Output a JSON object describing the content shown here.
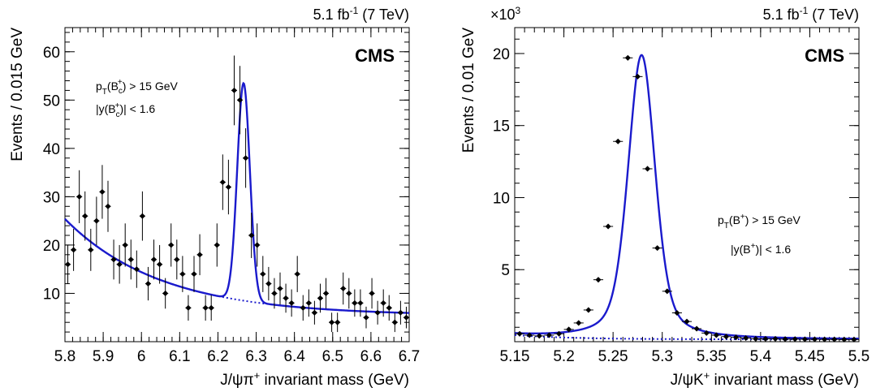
{
  "panels": [
    {
      "id": "left",
      "lumi_main": "5.1 fb",
      "lumi_sup": "-1",
      "lumi_tail": " (7 TeV)",
      "experiment": "CMS",
      "cut1": {
        "a": "p",
        "b": "T",
        "c": "(B",
        "d": "c",
        "e": "+",
        "f": ") > 15 GeV"
      },
      "cut2": {
        "a": "|y(B",
        "b": "c",
        "c": "+",
        "d": ")| < 1.6"
      },
      "xlabel": {
        "a": "J/ψπ",
        "b": "+",
        "c": " invariant mass (GeV)"
      },
      "ylabel": "Events / 0.015 GeV"
    },
    {
      "id": "right",
      "lumi_main": "5.1 fb",
      "lumi_sup": "-1",
      "lumi_tail": " (7 TeV)",
      "experiment": "CMS",
      "multiplier": {
        "a": "×10",
        "b": "3"
      },
      "cut1": {
        "a": "p",
        "b": "T",
        "c": "(B",
        "d": "+",
        "e": ") > 15 GeV"
      },
      "cut2": {
        "a": "|y(B",
        "b": "+",
        "c": ")| < 1.6"
      },
      "xlabel": {
        "a": "J/ψK",
        "b": "+",
        "c": " invariant mass (GeV)"
      },
      "ylabel": "Events / 0.01 GeV"
    }
  ],
  "colors": {
    "fit": "#1a1acc",
    "points": "#000000"
  },
  "chart_data": [
    {
      "type": "scatter",
      "xlim": [
        5.8,
        6.7
      ],
      "ylim": [
        0,
        65
      ],
      "xticks": [
        5.8,
        5.9,
        6.0,
        6.1,
        6.2,
        6.3,
        6.4,
        6.5,
        6.6,
        6.7
      ],
      "xtick_labels": [
        "5.8",
        "5.9",
        "6",
        "6.1",
        "6.2",
        "6.3",
        "6.4",
        "6.5",
        "6.6",
        "6.7"
      ],
      "yticks": [
        10,
        20,
        30,
        40,
        50,
        60
      ],
      "ytick_labels": [
        "10",
        "20",
        "30",
        "40",
        "50",
        "60"
      ],
      "bin_width": 0.015,
      "data": {
        "x": [
          5.8075,
          5.8225,
          5.8375,
          5.8525,
          5.8675,
          5.8825,
          5.8975,
          5.9125,
          5.9275,
          5.9425,
          5.9575,
          5.9725,
          5.9875,
          6.0025,
          6.0175,
          6.0325,
          6.0475,
          6.0625,
          6.0775,
          6.0925,
          6.1075,
          6.1225,
          6.1375,
          6.1525,
          6.1675,
          6.1825,
          6.1975,
          6.2125,
          6.2275,
          6.2425,
          6.2575,
          6.2725,
          6.2875,
          6.3025,
          6.3175,
          6.3325,
          6.3475,
          6.3625,
          6.3775,
          6.3925,
          6.4075,
          6.4225,
          6.4375,
          6.4525,
          6.4675,
          6.4825,
          6.4975,
          6.5125,
          6.5275,
          6.5425,
          6.5575,
          6.5725,
          6.5875,
          6.6025,
          6.6175,
          6.6325,
          6.6475,
          6.6625,
          6.6775,
          6.6925
        ],
        "y": [
          16,
          19,
          30,
          26,
          19,
          25,
          31,
          28,
          17,
          16,
          20,
          17,
          15,
          26,
          12,
          17,
          16,
          10,
          20,
          17,
          14,
          7,
          14,
          18,
          7,
          7,
          20,
          33,
          32,
          52,
          50,
          38,
          22,
          20,
          14,
          12,
          10,
          11,
          9,
          8,
          14,
          7,
          8,
          6,
          9,
          10,
          4,
          4,
          11,
          10,
          8,
          8,
          5,
          10,
          6,
          8,
          7,
          4,
          6,
          5
        ]
      },
      "series": [
        {
          "kind": "fit-total",
          "style": "solid"
        },
        {
          "kind": "fit-background",
          "style": "dotted"
        }
      ]
    },
    {
      "type": "scatter",
      "xlim": [
        5.15,
        5.5
      ],
      "ylim": [
        0,
        21800
      ],
      "xticks": [
        5.15,
        5.2,
        5.25,
        5.3,
        5.35,
        5.4,
        5.45,
        5.5
      ],
      "xtick_labels": [
        "5.15",
        "5.2",
        "5.25",
        "5.3",
        "5.35",
        "5.4",
        "5.45",
        "5.5"
      ],
      "yticks": [
        5000,
        10000,
        15000,
        20000
      ],
      "ytick_labels": [
        "5",
        "10",
        "15",
        "20"
      ],
      "bin_width": 0.01,
      "data": {
        "x": [
          5.155,
          5.165,
          5.175,
          5.185,
          5.195,
          5.205,
          5.215,
          5.225,
          5.235,
          5.245,
          5.255,
          5.265,
          5.275,
          5.285,
          5.295,
          5.305,
          5.315,
          5.325,
          5.335,
          5.345,
          5.355,
          5.365,
          5.375,
          5.385,
          5.395,
          5.405,
          5.415,
          5.425,
          5.435,
          5.445,
          5.455,
          5.465,
          5.475,
          5.485,
          5.495
        ],
        "y": [
          550,
          450,
          400,
          450,
          550,
          850,
          1300,
          2200,
          4300,
          8000,
          13900,
          19700,
          18400,
          12000,
          6500,
          3500,
          2000,
          1400,
          900,
          600,
          450,
          350,
          300,
          250,
          200,
          200,
          200,
          180,
          180,
          170,
          170,
          160,
          160,
          150,
          150
        ]
      },
      "series": [
        {
          "kind": "fit-total",
          "style": "solid"
        },
        {
          "kind": "fit-background",
          "style": "dotted"
        }
      ]
    }
  ]
}
